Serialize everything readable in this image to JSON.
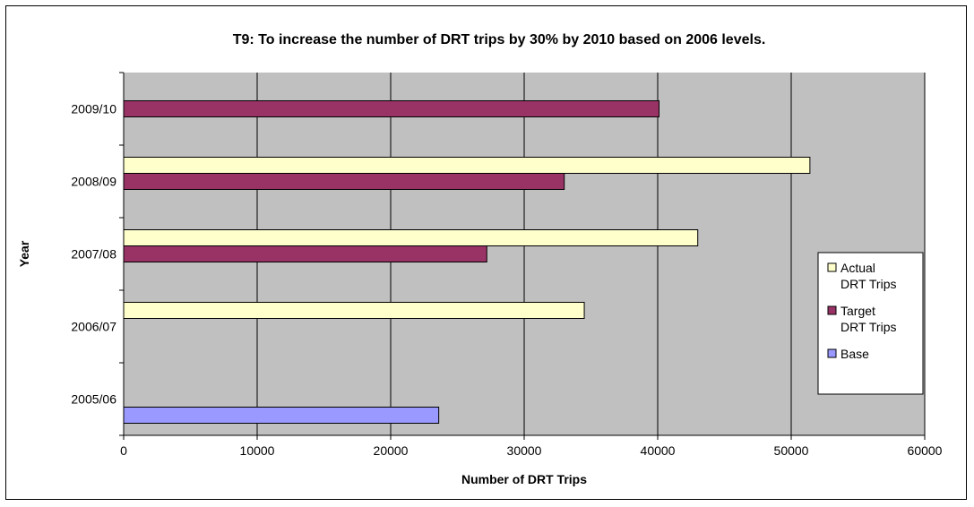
{
  "chart_data": {
    "type": "bar",
    "orientation": "horizontal",
    "title": "T9: To increase the number of DRT trips by 30% by 2010 based on 2006 levels.",
    "xlabel": "Number of DRT Trips",
    "ylabel": "Year",
    "xlim": [
      0,
      60000
    ],
    "x_ticks": [
      "0",
      "10000",
      "20000",
      "30000",
      "40000",
      "50000",
      "60000"
    ],
    "categories": [
      "2005/06",
      "2006/07",
      "2007/08",
      "2008/09",
      "2009/10"
    ],
    "grid": "vertical",
    "legend_position": "right",
    "series": [
      {
        "name": "Actual DRT Trips",
        "legend_lines": [
          "Actual",
          "DRT Trips"
        ],
        "color": "#FFFFCC",
        "values": [
          null,
          34500,
          43000,
          51400,
          null
        ]
      },
      {
        "name": "Target DRT Trips",
        "legend_lines": [
          "Target",
          "DRT Trips"
        ],
        "color": "#993366",
        "values": [
          null,
          null,
          27200,
          33000,
          40100
        ]
      },
      {
        "name": "Base",
        "legend_lines": [
          "Base"
        ],
        "color": "#9999FF",
        "values": [
          23600,
          null,
          null,
          null,
          null
        ]
      }
    ]
  },
  "colors": {
    "plot_background": "#C0C0C0",
    "gridline": "#000000"
  }
}
